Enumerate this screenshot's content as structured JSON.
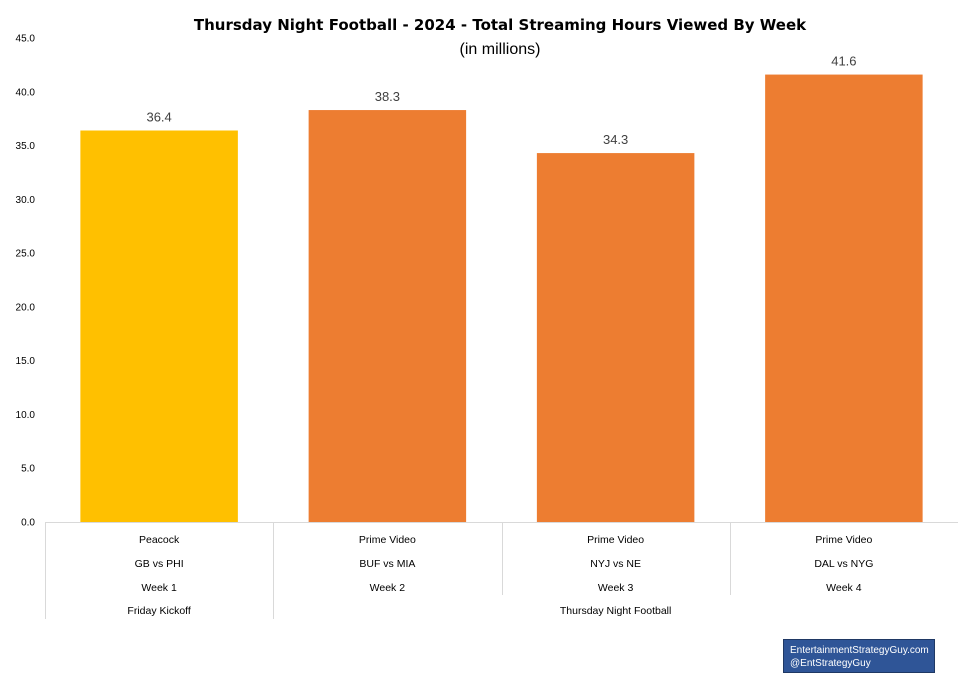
{
  "chart_data": {
    "type": "bar",
    "title": "Thursday Night Football - 2024 - Total Streaming Hours Viewed By Week",
    "subtitle": "(in millions)",
    "ylim": [
      0,
      45
    ],
    "yticks": [
      "0.0",
      "5.0",
      "10.0",
      "15.0",
      "20.0",
      "25.0",
      "30.0",
      "35.0",
      "40.0",
      "45.0"
    ],
    "grid": false,
    "categories": [
      {
        "platform": "Peacock",
        "matchup": "GB vs PHI",
        "week": "Week 1"
      },
      {
        "platform": "Prime Video",
        "matchup": "BUF vs MIA",
        "week": "Week 2"
      },
      {
        "platform": "Prime Video",
        "matchup": "NYJ vs NE",
        "week": "Week 3"
      },
      {
        "platform": "Prime Video",
        "matchup": "DAL vs NYG",
        "week": "Week 4"
      }
    ],
    "groups": [
      {
        "label": "Friday Kickoff",
        "count": 1
      },
      {
        "label": "Thursday Night Football",
        "count": 3
      }
    ],
    "values": [
      36.4,
      38.3,
      34.3,
      41.6
    ],
    "data_labels": [
      "36.4",
      "38.3",
      "34.3",
      "41.6"
    ],
    "colors": [
      "#ffc000",
      "#ed7d31",
      "#ed7d31",
      "#ed7d31"
    ]
  },
  "credit": {
    "line1": "EntertainmentStrategyGuy.com",
    "line2": "@EntStrategyGuy"
  }
}
